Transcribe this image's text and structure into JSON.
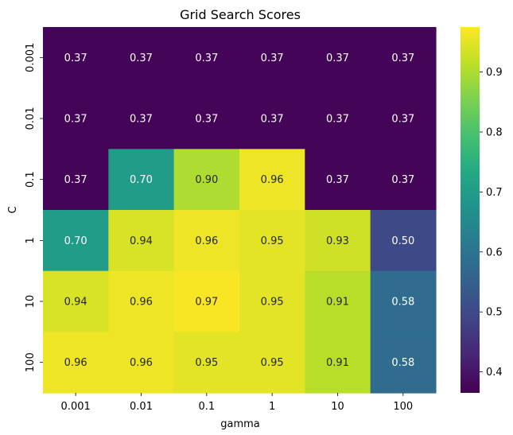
{
  "chart_data": {
    "type": "heatmap",
    "title": "Grid Search Scores",
    "xlabel": "gamma",
    "ylabel": "C",
    "x_categories": [
      "0.001",
      "0.01",
      "0.1",
      "1",
      "10",
      "100"
    ],
    "y_categories": [
      "0.001",
      "0.01",
      "0.1",
      "1",
      "10",
      "100"
    ],
    "values": [
      [
        0.37,
        0.37,
        0.37,
        0.37,
        0.37,
        0.37
      ],
      [
        0.37,
        0.37,
        0.37,
        0.37,
        0.37,
        0.37
      ],
      [
        0.37,
        0.7,
        0.9,
        0.96,
        0.37,
        0.37
      ],
      [
        0.7,
        0.94,
        0.96,
        0.95,
        0.93,
        0.5
      ],
      [
        0.94,
        0.96,
        0.97,
        0.95,
        0.91,
        0.58
      ],
      [
        0.96,
        0.96,
        0.95,
        0.95,
        0.91,
        0.58
      ]
    ],
    "value_format": "0.00",
    "colormap": "viridis",
    "color_range": [
      0.365,
      0.975
    ],
    "colorbar_ticks": [
      "0.4",
      "0.5",
      "0.6",
      "0.7",
      "0.8",
      "0.9"
    ],
    "grid": false
  }
}
